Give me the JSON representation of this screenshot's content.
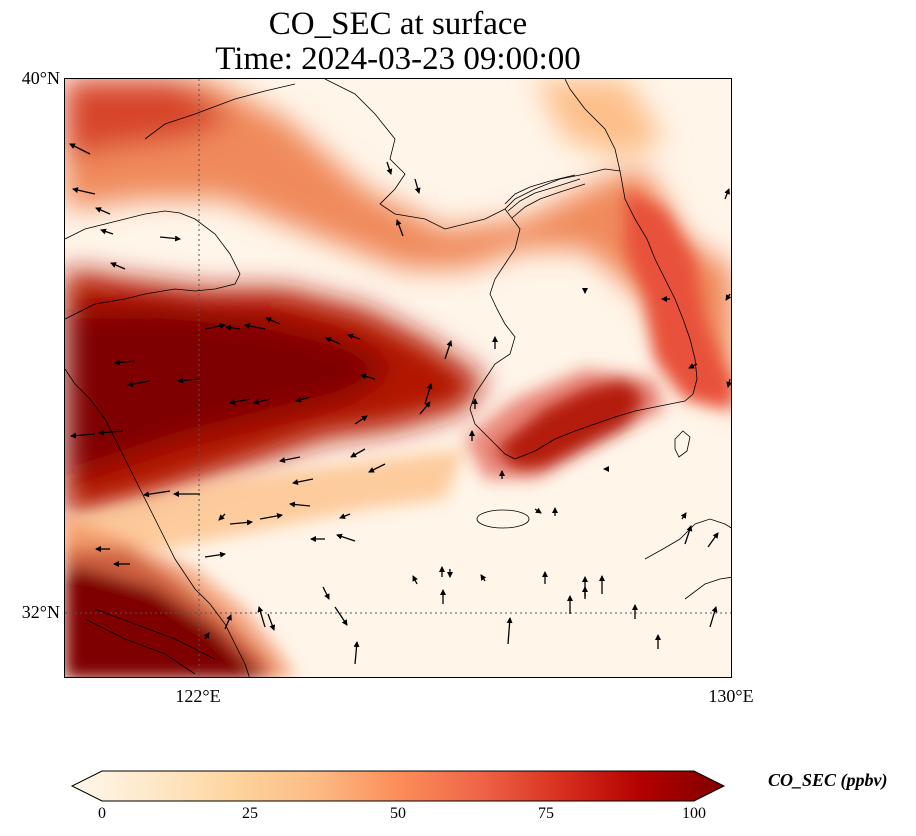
{
  "map": {
    "title": "CO_SEC at surface",
    "subtitle": "Time: 2024-03-23 09:00:00",
    "variable": "CO_SEC",
    "level": "surface",
    "time": "2024-03-23 09:00:00",
    "extent": {
      "lon_min": 120.0,
      "lon_max": 130.0,
      "lat_min": 31.0,
      "lat_max": 40.0
    },
    "gridlines": [
      {
        "axis": "lat",
        "value": 32,
        "label": "32°N"
      },
      {
        "axis": "lat",
        "value": 40,
        "label": "40°N"
      },
      {
        "axis": "lon",
        "value": 122,
        "label": "122°E"
      },
      {
        "axis": "lon",
        "value": 130,
        "label": "130°E"
      }
    ],
    "features": [
      "coastline",
      "wind-vectors",
      "concentration-field"
    ],
    "concentration_field": {
      "description_units": "ppbv",
      "plumes": [
        {
          "name": "western-china-plume",
          "level": 100
        },
        {
          "name": "southern-korea-plume",
          "level": 95
        },
        {
          "name": "northern-plume-band",
          "level": 65
        },
        {
          "name": "korea-east-arc",
          "level": 60
        },
        {
          "name": "southwest-corner-plume",
          "level": 100
        }
      ]
    }
  },
  "colorbar": {
    "label": "CO_SEC (ppbv)",
    "colormap": "OrRd",
    "min": 0,
    "max": 100,
    "ticks": [
      "0",
      "25",
      "50",
      "75",
      "100"
    ],
    "extend": "both",
    "colors": [
      "#fff7ec",
      "#fee8c8",
      "#fdd49e",
      "#fdbb84",
      "#fc8d59",
      "#ef6548",
      "#d7301f",
      "#b30000",
      "#7f0000"
    ]
  }
}
